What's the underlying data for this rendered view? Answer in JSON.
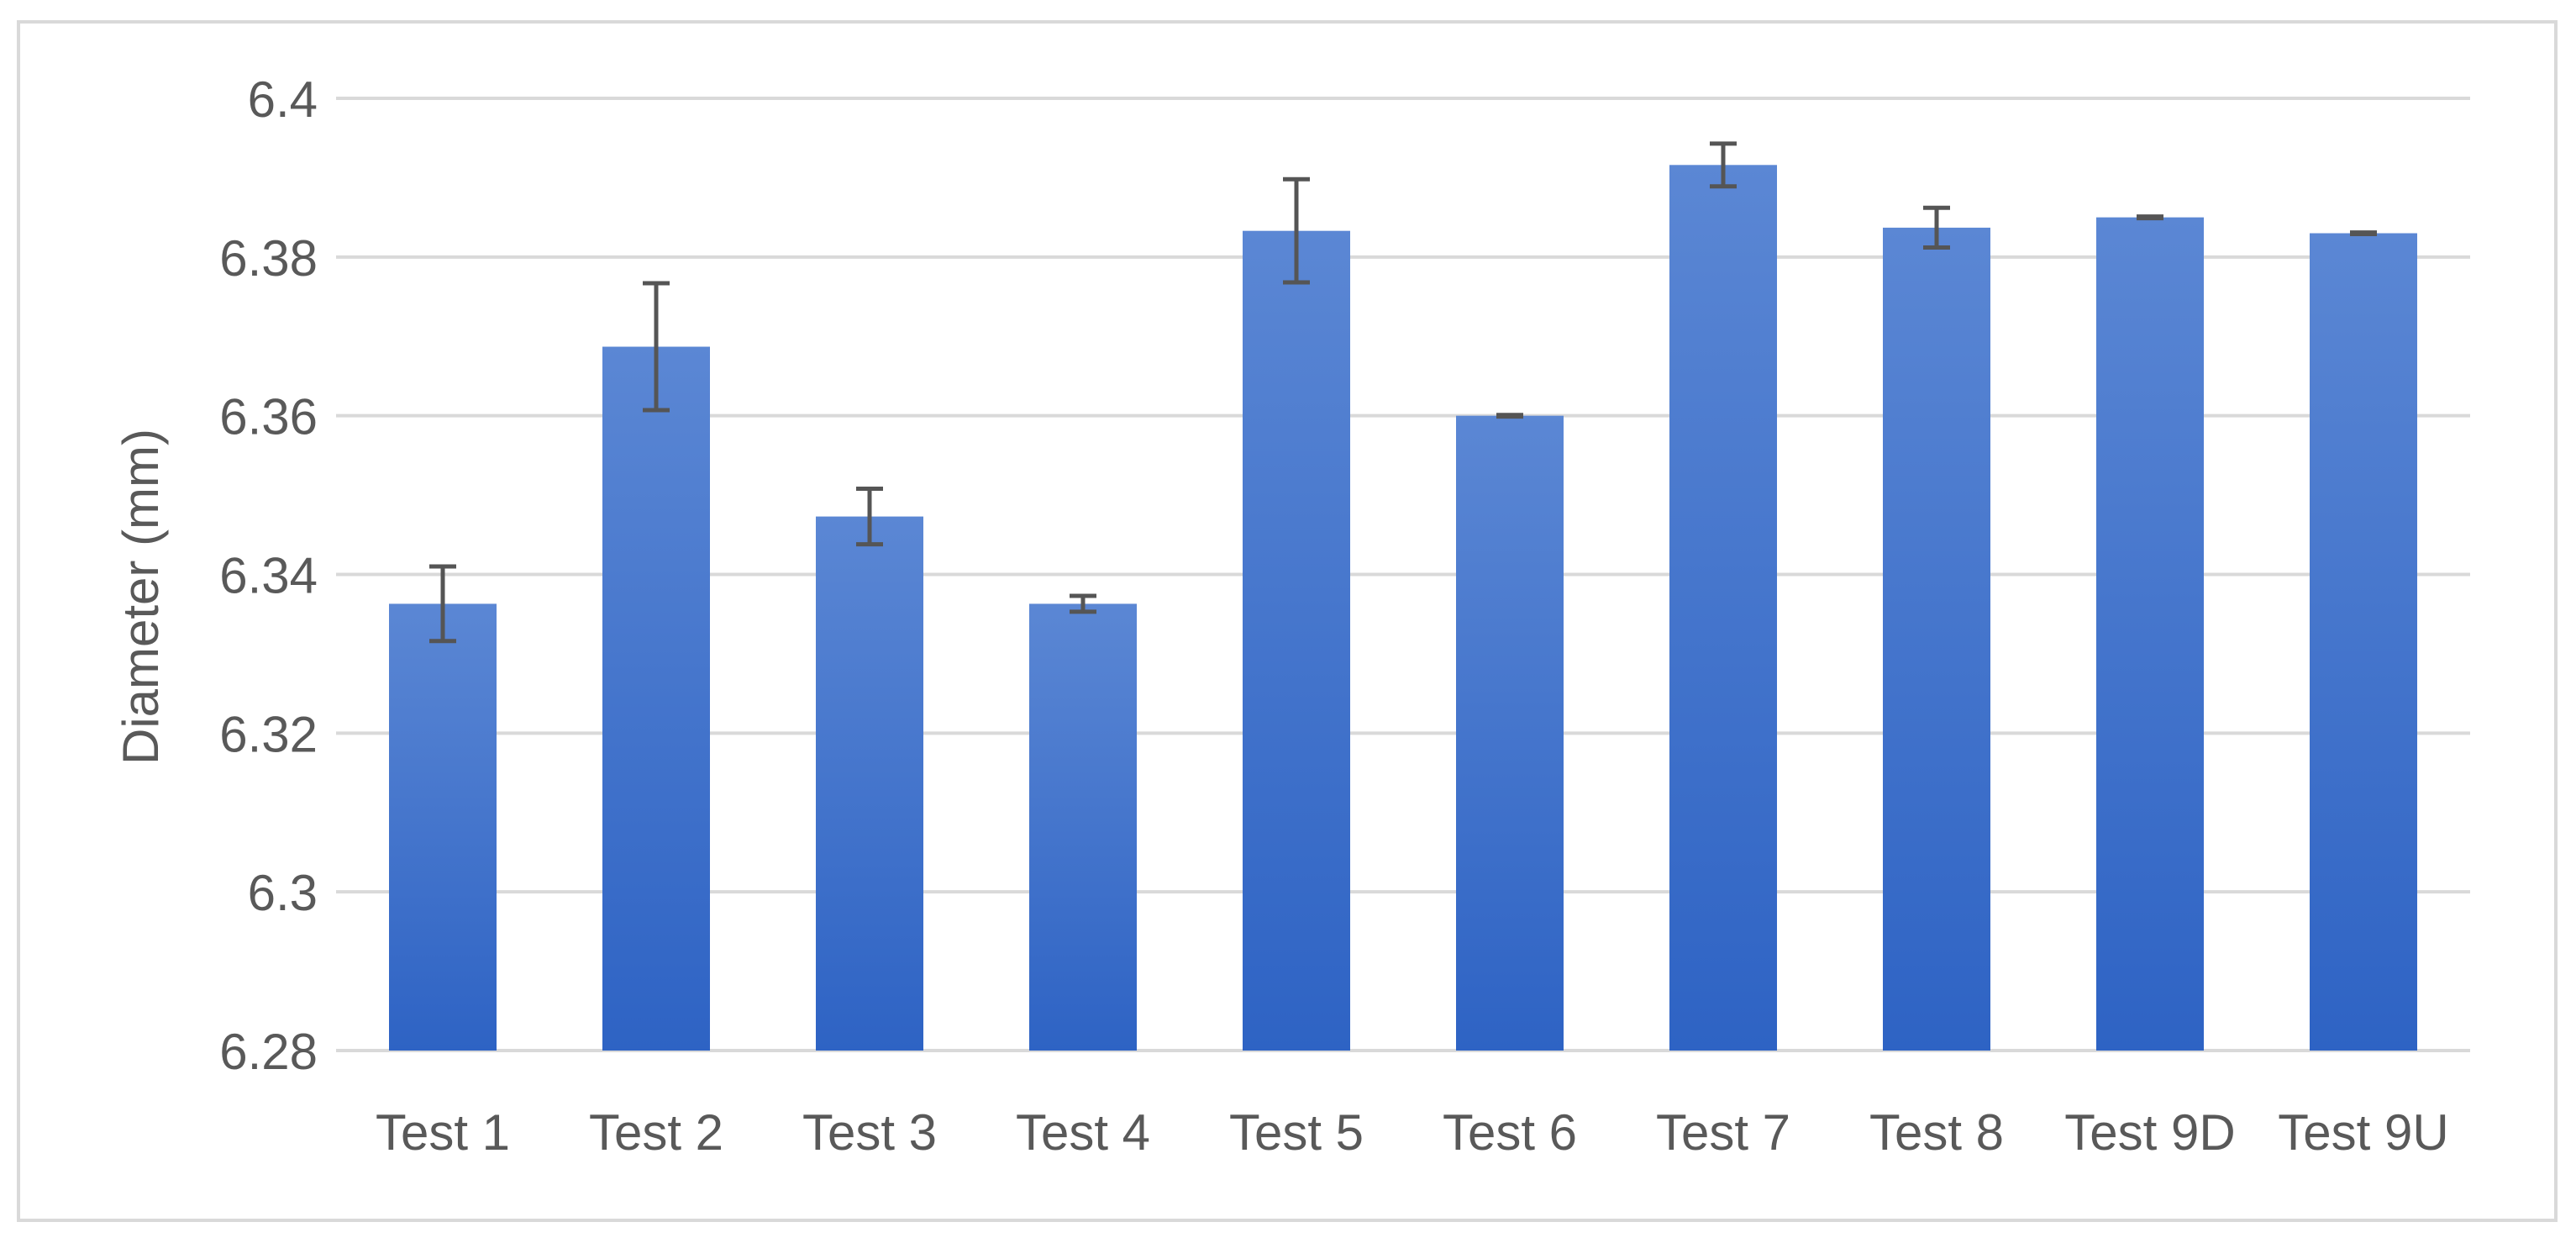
{
  "chart_data": {
    "type": "bar",
    "title": "",
    "xlabel": "",
    "ylabel": "Diameter (mm)",
    "ylim": [
      6.28,
      6.4
    ],
    "yticks": [
      "6.28",
      "6.3",
      "6.32",
      "6.34",
      "6.36",
      "6.38",
      "6.4"
    ],
    "categories": [
      "Test 1",
      "Test 2",
      "Test 3",
      "Test 4",
      "Test 5",
      "Test 6",
      "Test 7",
      "Test 8",
      "Test 9D",
      "Test 9U"
    ],
    "values": [
      6.3363,
      6.3687,
      6.3473,
      6.3363,
      6.3833,
      6.36,
      6.3916,
      6.3837,
      6.385,
      6.383
    ],
    "errors": [
      0.0047,
      0.008,
      0.0035,
      0.001,
      0.0065,
      0.0001,
      0.0027,
      0.0025,
      0.0001,
      0.0001
    ],
    "grid": true,
    "colors": {
      "bar_top": "#5b87d4",
      "bar_bottom": "#2e63c4",
      "grid": "#d9d9d9",
      "error": "#555555",
      "text": "#595959"
    }
  }
}
